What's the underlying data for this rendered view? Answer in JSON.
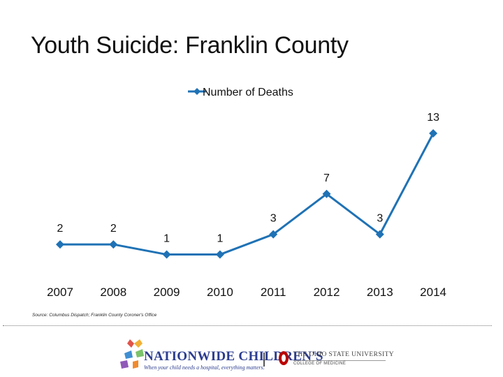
{
  "slide": {
    "title": "Youth Suicide: Franklin County",
    "source": "Source: Columbus Dispatch; Franklin County Coroner's Office"
  },
  "chart_data": {
    "type": "line",
    "categories": [
      "2007",
      "2008",
      "2009",
      "2010",
      "2011",
      "2012",
      "2013",
      "2014"
    ],
    "series": [
      {
        "name": "Number of Deaths",
        "values": [
          2,
          2,
          1,
          1,
          3,
          7,
          3,
          13
        ],
        "color": "#1f72b5"
      }
    ],
    "data_labels": true,
    "legend": "top-center",
    "grid": false,
    "y_axis_visible": false,
    "ylim": [
      0,
      13
    ]
  },
  "footer": {
    "logo_left": {
      "name": "NATIONWIDE CHILDREN'S",
      "tagline": "When your child needs a hospital, everything matters.",
      "icon": "butterflies-icon"
    },
    "logo_right": {
      "name": "THE OHIO STATE UNIVERSITY",
      "subtitle": "COLLEGE OF MEDICINE",
      "icon": "block-o-icon"
    }
  }
}
